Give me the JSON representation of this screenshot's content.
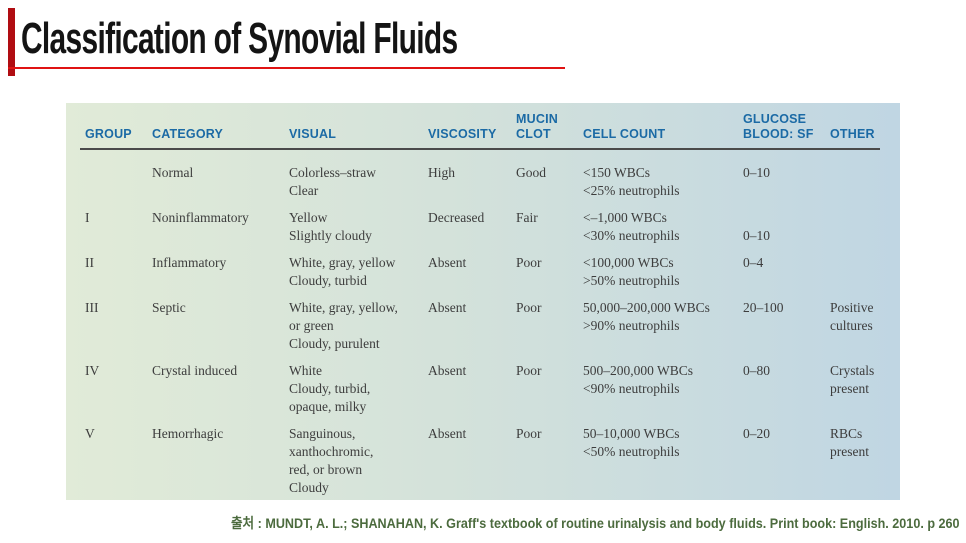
{
  "slide": {
    "title": "Classification of Synovial Fluids",
    "citation": "출처 : MUNDT, A. L.; SHANAHAN, K. Graff's textbook of routine urinalysis and body fluids. Print book: English. 2010. p 260"
  },
  "colors": {
    "accent_bar": "#b00d12",
    "title_underline": "#e01313",
    "header_text_blue": "#1b6aa5",
    "table_gradient_left": "#e1ebd8",
    "table_gradient_right": "#c0d6e3",
    "body_text": "#3d3d3d",
    "citation_text": "#4c6b3e"
  },
  "table": {
    "headers": [
      "GROUP",
      "CATEGORY",
      "VISUAL",
      "VISCOSITY",
      "MUCIN\nCLOT",
      "CELL COUNT",
      "GLUCOSE\nBLOOD: SF",
      "OTHER"
    ],
    "rows": [
      {
        "group": "",
        "category": "Normal",
        "visual": "Colorless–straw\nClear",
        "viscosity": "High",
        "mucin_clot": "Good",
        "cell_count": "<150 WBCs\n<25% neutrophils",
        "glucose_blood_sf": "0–10",
        "other": ""
      },
      {
        "group": "I",
        "category": "Noninflammatory",
        "visual": "Yellow\nSlightly cloudy",
        "viscosity": "Decreased",
        "mucin_clot": "Fair",
        "cell_count": "<–1,000 WBCs\n<30% neutrophils",
        "glucose_blood_sf": "\n0–10",
        "other": ""
      },
      {
        "group": "II",
        "category": "Inflammatory",
        "visual": "White, gray, yellow\nCloudy, turbid",
        "viscosity": "Absent",
        "mucin_clot": "Poor",
        "cell_count": "<100,000 WBCs\n>50% neutrophils",
        "glucose_blood_sf": "0–4",
        "other": ""
      },
      {
        "group": "III",
        "category": "Septic",
        "visual": "White, gray, yellow,\nor green\nCloudy, purulent",
        "viscosity": "Absent",
        "mucin_clot": "Poor",
        "cell_count": "50,000–200,000 WBCs\n>90% neutrophils",
        "glucose_blood_sf": "20–100",
        "other": "Positive\ncultures"
      },
      {
        "group": "IV",
        "category": "Crystal induced",
        "visual": "White\nCloudy, turbid,\nopaque, milky",
        "viscosity": "Absent",
        "mucin_clot": "Poor",
        "cell_count": "500–200,000 WBCs\n<90% neutrophils",
        "glucose_blood_sf": "0–80",
        "other": "Crystals\npresent"
      },
      {
        "group": "V",
        "category": "Hemorrhagic",
        "visual": "Sanguinous,\nxanthochromic,\nred, or brown\nCloudy",
        "viscosity": "Absent",
        "mucin_clot": "Poor",
        "cell_count": "50–10,000 WBCs\n<50% neutrophils",
        "glucose_blood_sf": "0–20",
        "other": "RBCs\npresent"
      }
    ]
  }
}
